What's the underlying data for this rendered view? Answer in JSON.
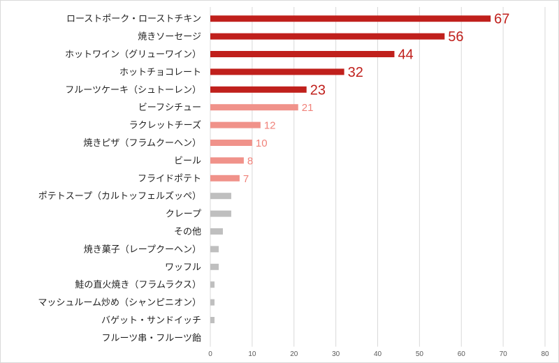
{
  "chart_data": {
    "type": "bar",
    "orientation": "horizontal",
    "title": "",
    "xlabel": "",
    "ylabel": "",
    "xlim": [
      0,
      80
    ],
    "xticks": [
      0,
      10,
      20,
      30,
      40,
      50,
      60,
      70,
      80
    ],
    "grid": true,
    "legend": "none",
    "colors": {
      "top": "#c0201c",
      "mid": "#f0928a",
      "low": "#bfbfbf",
      "top_label": "#c0201c",
      "mid_label": "#f0827a",
      "grid": "#d9d9d9",
      "tick_text": "#595959"
    },
    "categories": [
      "ローストポーク・ローストチキン",
      "焼きソーセージ",
      "ホットワイン（グリューワイン）",
      "ホットチョコレート",
      "フルーツケーキ（シュトーレン）",
      "ビーフシチュー",
      "ラクレットチーズ",
      "焼きピザ（フラムクーヘン）",
      "ビール",
      "フライドポテト",
      "ポテトスープ（カルトッフェルズッペ）",
      "クレープ",
      "その他",
      "焼き菓子（レープクーヘン）",
      "ワッフル",
      "鮭の直火焼き（フラムラクス）",
      "マッシュルーム炒め（シャンピニオン）",
      "バゲット・サンドイッチ",
      "フルーツ串・フルーツ飴"
    ],
    "values": [
      67,
      56,
      44,
      32,
      23,
      21,
      12,
      10,
      8,
      7,
      5,
      5,
      3,
      2,
      2,
      1,
      1,
      1,
      0
    ],
    "value_labels": [
      "67",
      "56",
      "44",
      "32",
      "23",
      "21",
      "12",
      "10",
      "8",
      "7",
      "",
      "",
      "",
      "",
      "",
      "",
      "",
      "",
      ""
    ],
    "tiers": [
      "top",
      "top",
      "top",
      "top",
      "top",
      "mid",
      "mid",
      "mid",
      "mid",
      "mid",
      "low",
      "low",
      "low",
      "low",
      "low",
      "low",
      "low",
      "low",
      "low"
    ]
  }
}
